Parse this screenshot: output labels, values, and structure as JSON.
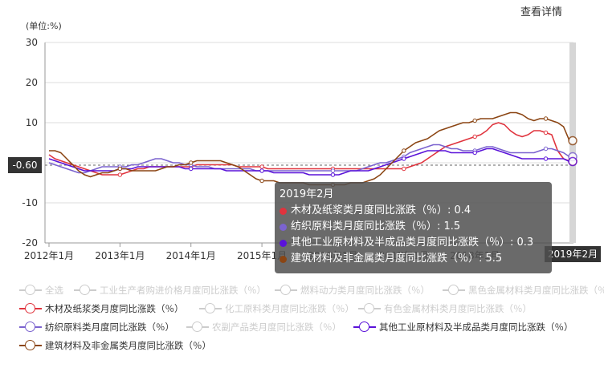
{
  "link_label": "查看详情",
  "chart_data": {
    "type": "line",
    "unit_label": "(单位:%)",
    "ylim": [
      -20,
      30
    ],
    "yticks": [
      -20,
      -10,
      0,
      10,
      20,
      30
    ],
    "xtick_labels": [
      "2012年1月",
      "2013年1月",
      "2014年1月",
      "2015年1月",
      "2016年1月",
      "2017年1月",
      "2018年1月"
    ],
    "grid": true,
    "y_pointer_label": "-0.60",
    "x_pointer_label": "2019年2月",
    "x_start": "2012-01",
    "x_end": "2019-02",
    "series": [
      {
        "name": "木材及纸浆类月度同比涨跌（％）",
        "color": "#e0333d",
        "values": [
          2.0,
          1.0,
          0.5,
          0.0,
          -0.5,
          -1.0,
          -1.5,
          -2.0,
          -2.5,
          -3.0,
          -3.0,
          -3.0,
          -3.0,
          -2.5,
          -2.0,
          -1.5,
          -1.5,
          -1.0,
          -1.0,
          -1.0,
          -1.0,
          -1.0,
          -1.0,
          -1.0,
          -1.0,
          -0.5,
          -0.5,
          -0.5,
          -0.5,
          -0.5,
          -0.5,
          -0.5,
          -1.0,
          -1.0,
          -1.0,
          -1.0,
          -1.0,
          -1.5,
          -1.5,
          -1.5,
          -1.5,
          -1.5,
          -1.5,
          -1.5,
          -1.5,
          -1.5,
          -1.5,
          -1.5,
          -1.5,
          -1.5,
          -1.5,
          -1.5,
          -1.5,
          -1.5,
          -1.5,
          -1.5,
          -1.5,
          -1.5,
          -1.5,
          -1.5,
          -1.5,
          -1.0,
          -0.5,
          0.0,
          1.0,
          2.0,
          3.0,
          4.0,
          4.5,
          5.0,
          5.5,
          6.0,
          6.5,
          7.0,
          8.0,
          9.5,
          10.0,
          9.5,
          8.0,
          7.0,
          6.5,
          7.0,
          8.0,
          8.0,
          7.5,
          7.0,
          3.0,
          1.0,
          0.4
        ]
      },
      {
        "name": "纺织原料类月度同比涨跌（％）",
        "color": "#7b63cf",
        "values": [
          0.0,
          -0.5,
          -1.0,
          -1.5,
          -2.0,
          -2.5,
          -2.5,
          -2.0,
          -1.5,
          -1.0,
          -1.0,
          -1.0,
          -1.0,
          -1.0,
          -0.5,
          -0.5,
          0.0,
          0.5,
          1.0,
          1.0,
          0.5,
          0.0,
          0.0,
          -0.5,
          -0.5,
          -1.0,
          -1.0,
          -1.0,
          -1.5,
          -1.5,
          -1.5,
          -1.5,
          -1.5,
          -1.5,
          -1.5,
          -2.0,
          -2.0,
          -2.0,
          -2.0,
          -2.0,
          -2.0,
          -2.0,
          -2.0,
          -2.0,
          -2.0,
          -2.0,
          -2.0,
          -2.0,
          -2.0,
          -2.0,
          -2.0,
          -2.0,
          -2.0,
          -1.5,
          -1.0,
          -0.5,
          0.0,
          0.0,
          0.5,
          1.0,
          1.5,
          2.5,
          3.0,
          3.5,
          4.0,
          4.5,
          4.5,
          4.0,
          3.5,
          3.5,
          3.0,
          3.0,
          3.0,
          3.5,
          4.0,
          4.0,
          3.5,
          3.0,
          2.5,
          2.5,
          2.5,
          2.5,
          2.5,
          3.0,
          3.5,
          3.5,
          3.0,
          2.5,
          1.5
        ]
      },
      {
        "name": "其他工业原材料及半成品类月度同比涨跌（％）",
        "color": "#5a12d9",
        "values": [
          1.0,
          0.5,
          0.0,
          -0.5,
          -1.0,
          -1.5,
          -2.0,
          -2.0,
          -2.0,
          -2.0,
          -2.0,
          -2.0,
          -1.5,
          -1.5,
          -1.5,
          -1.0,
          -1.0,
          -1.0,
          -1.0,
          -1.0,
          -1.0,
          -1.0,
          -1.0,
          -1.5,
          -1.5,
          -1.5,
          -1.5,
          -1.5,
          -1.5,
          -1.5,
          -2.0,
          -2.0,
          -2.0,
          -2.0,
          -2.0,
          -2.0,
          -2.0,
          -2.0,
          -2.5,
          -2.5,
          -2.5,
          -2.5,
          -2.5,
          -2.5,
          -3.0,
          -3.0,
          -3.0,
          -3.0,
          -3.0,
          -3.0,
          -2.5,
          -2.0,
          -2.0,
          -2.0,
          -2.0,
          -1.5,
          -1.0,
          -0.5,
          0.0,
          0.5,
          1.0,
          1.5,
          2.0,
          2.5,
          3.0,
          3.0,
          3.0,
          3.0,
          2.5,
          2.5,
          2.5,
          2.5,
          2.5,
          3.0,
          3.5,
          3.5,
          3.0,
          2.5,
          2.0,
          1.5,
          1.0,
          1.0,
          1.0,
          1.0,
          1.0,
          1.0,
          1.0,
          1.0,
          0.3
        ]
      },
      {
        "name": "建筑材料及非金属类月度同比涨跌（％）",
        "color": "#8b4513",
        "values": [
          3.0,
          3.0,
          2.5,
          1.0,
          -0.5,
          -2.0,
          -3.0,
          -3.5,
          -3.0,
          -2.5,
          -2.5,
          -2.0,
          -1.5,
          -1.5,
          -2.0,
          -2.0,
          -2.0,
          -2.0,
          -2.0,
          -1.5,
          -1.0,
          -1.0,
          -0.5,
          -0.5,
          0.0,
          0.5,
          0.5,
          0.5,
          0.5,
          0.5,
          0.0,
          -0.5,
          -1.0,
          -2.0,
          -3.0,
          -4.0,
          -4.5,
          -4.5,
          -4.5,
          -5.0,
          -5.0,
          -5.0,
          -5.0,
          -5.0,
          -5.5,
          -5.5,
          -5.5,
          -5.5,
          -5.5,
          -5.5,
          -5.5,
          -5.0,
          -5.0,
          -5.0,
          -4.5,
          -4.0,
          -3.0,
          -1.5,
          0.0,
          1.5,
          3.0,
          4.0,
          5.0,
          5.5,
          6.0,
          7.0,
          8.0,
          8.5,
          9.0,
          9.5,
          10.0,
          10.0,
          10.5,
          11.0,
          11.0,
          11.0,
          11.5,
          12.0,
          12.5,
          12.5,
          12.0,
          11.0,
          10.5,
          11.0,
          11.0,
          10.5,
          10.0,
          9.0,
          5.5
        ]
      }
    ]
  },
  "tooltip": {
    "title": "2019年2月",
    "rows": [
      {
        "label": "木材及纸浆类月度同比涨跌（％）: 0.4",
        "color": "#e0333d"
      },
      {
        "label": "纺织原料类月度同比涨跌（％）: 1.5",
        "color": "#7b63cf"
      },
      {
        "label": "其他工业原材料及半成品类月度同比涨跌（％）: 0.3",
        "color": "#5a12d9"
      },
      {
        "label": "建筑材料及非金属类月度同比涨跌（％）: 5.5",
        "color": "#8b4513"
      }
    ]
  },
  "legend": [
    {
      "label": "全选",
      "active": false,
      "color": "#cccccc"
    },
    {
      "label": "工业生产者购进价格月度同比涨跌（％）",
      "active": false,
      "color": "#cccccc"
    },
    {
      "label": "燃料动力类月度同比涨跌（％）",
      "active": false,
      "color": "#cccccc"
    },
    {
      "label": "黑色金属材料类月度同比涨跌（％）",
      "active": false,
      "color": "#cccccc"
    },
    {
      "label": "木材及纸浆类月度同比涨跌（％）",
      "active": true,
      "color": "#e0333d"
    },
    {
      "label": "化工原料类月度同比涨跌（％）",
      "active": false,
      "color": "#cccccc"
    },
    {
      "label": "有色金属材料类月度同比涨跌（％）",
      "active": false,
      "color": "#cccccc"
    },
    {
      "label": "纺织原料类月度同比涨跌（％）",
      "active": true,
      "color": "#7b63cf"
    },
    {
      "label": "农副产品类月度同比涨跌（％）",
      "active": false,
      "color": "#cccccc"
    },
    {
      "label": "其他工业原材料及半成品类月度同比涨跌（％）",
      "active": true,
      "color": "#5a12d9"
    },
    {
      "label": "建筑材料及非金属类月度同比涨跌（％）",
      "active": true,
      "color": "#8b4513"
    }
  ]
}
